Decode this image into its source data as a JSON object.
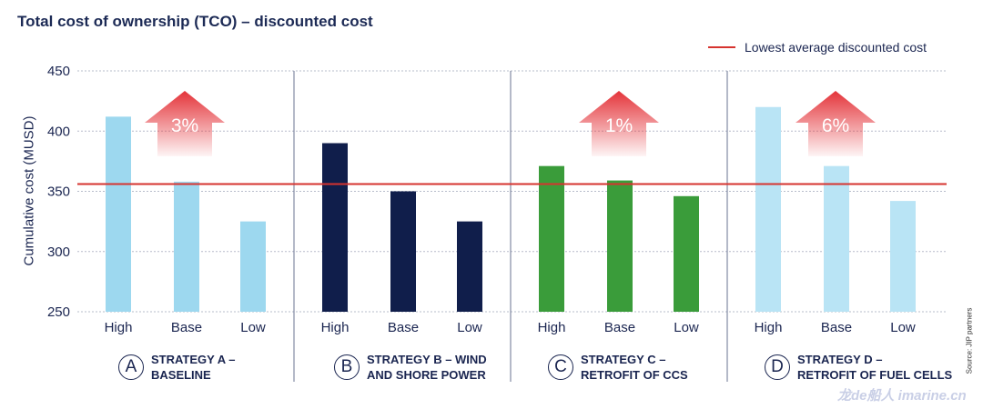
{
  "chart_data": {
    "type": "bar",
    "title": "Total cost of ownership (TCO) – discounted cost",
    "ylabel": "Cumulative cost (MUSD)",
    "ylim": [
      250,
      450
    ],
    "yticks": [
      250,
      300,
      350,
      400,
      450
    ],
    "grid": true,
    "legend": {
      "position": "top-right",
      "label": "Lowest average discounted cost",
      "color": "#d6332f"
    },
    "reference_line": {
      "label": "Lowest average discounted cost",
      "value": 356
    },
    "categories": [
      "High",
      "Base",
      "Low"
    ],
    "groups": [
      {
        "letter": "A",
        "name": "STRATEGY A –\nBASELINE",
        "color": "#9dd8ef",
        "values": [
          412,
          358,
          325
        ],
        "arrow_label": "3%"
      },
      {
        "letter": "B",
        "name": "STRATEGY B – WIND\nAND SHORE POWER",
        "color": "#101e4b",
        "values": [
          390,
          350,
          325
        ],
        "arrow_label": ""
      },
      {
        "letter": "C",
        "name": "STRATEGY C –\nRETROFIT OF CCS",
        "color": "#3a9c3a",
        "values": [
          371,
          359,
          346
        ],
        "arrow_label": "1%"
      },
      {
        "letter": "D",
        "name": "STRATEGY D –\nRETROFIT OF FUEL CELLS",
        "color": "#b9e4f5",
        "values": [
          420,
          371,
          342
        ],
        "arrow_label": "6%"
      }
    ],
    "source": "Source: JIP partners"
  },
  "watermark": "龙de船人 imarine.cn"
}
